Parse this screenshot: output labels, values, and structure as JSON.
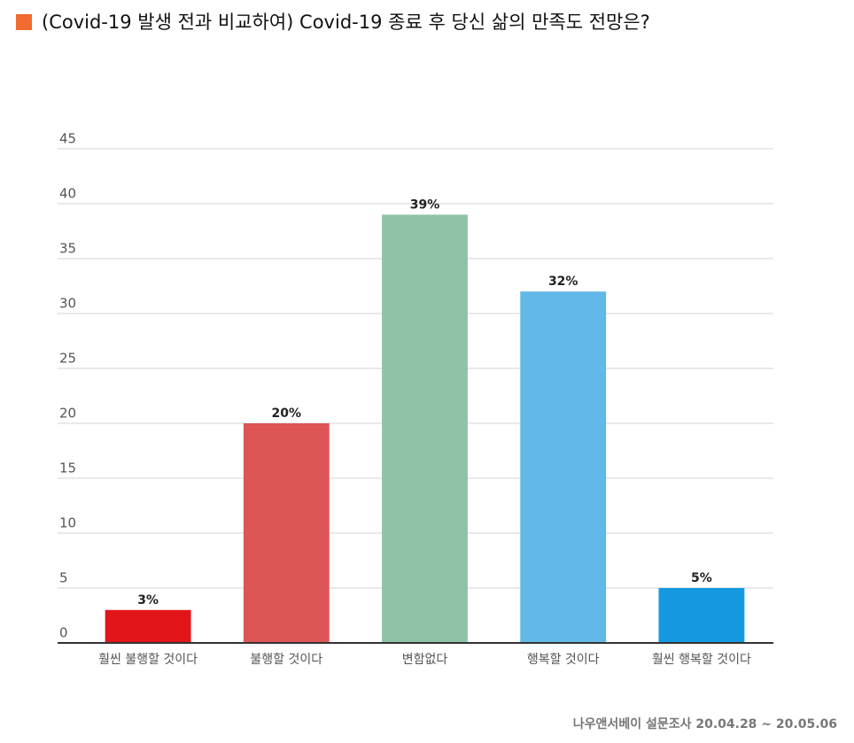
{
  "chart_data": {
    "type": "bar",
    "title": "(Covid-19 발생 전과 비교하여) Covid-19 종료 후 당신 삶의 만족도 전망은?",
    "categories": [
      "훨씬 불행할 것이다",
      "불행할 것이다",
      "변함없다",
      "행복할 것이다",
      "훨씬 행복할 것이다"
    ],
    "values": [
      3,
      20,
      39,
      32,
      5
    ],
    "value_labels": [
      "3%",
      "20%",
      "39%",
      "32%",
      "5%"
    ],
    "colors": [
      "#e2151b",
      "#dd5555",
      "#8fc3a8",
      "#62b8e6",
      "#1499e1"
    ],
    "ylim": [
      0,
      45
    ],
    "yticks": [
      0,
      5,
      10,
      15,
      20,
      25,
      30,
      35,
      40,
      45
    ],
    "grid": true,
    "source": "나우앤서베이 설문조사 20.04.28 ~ 20.05.06"
  }
}
